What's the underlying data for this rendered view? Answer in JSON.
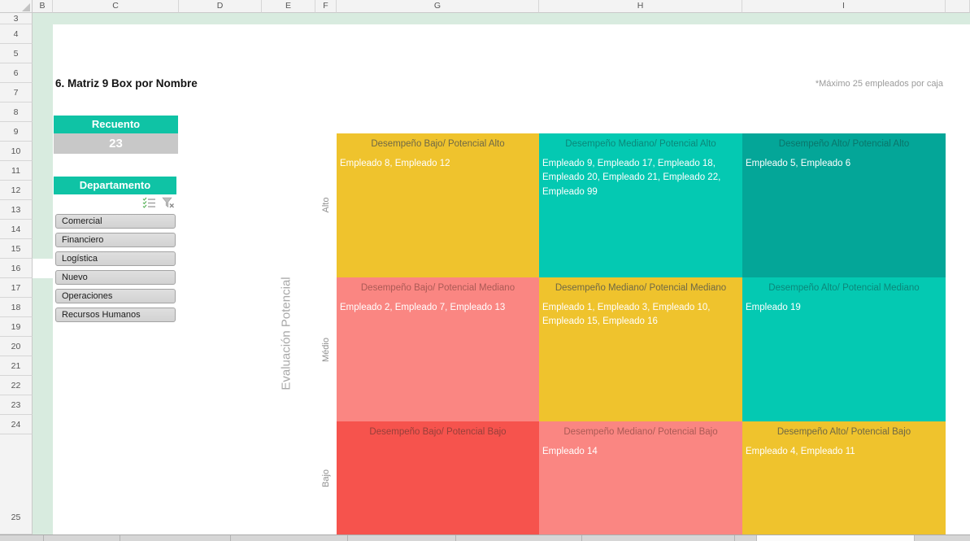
{
  "window": {
    "columns": [
      "B",
      "C",
      "D",
      "E",
      "F",
      "G",
      "H",
      "I",
      ""
    ],
    "rows": [
      "3",
      "4",
      "5",
      "6",
      "7",
      "8",
      "9",
      "10",
      "11",
      "12",
      "13",
      "14",
      "15",
      "16",
      "17",
      "18",
      "19",
      "20",
      "21",
      "22",
      "23",
      "24",
      "25"
    ]
  },
  "header": {
    "title": "6. Matriz 9 Box por Nombre",
    "note": "*Máximo 25 empleados por caja"
  },
  "count_card": {
    "label": "Recuento",
    "value": "23"
  },
  "slicer": {
    "title": "Departamento",
    "icons": [
      "multi-select-icon",
      "clear-filter-icon"
    ],
    "items": [
      "Comercial",
      "Financiero",
      "Logística",
      "Nuevo",
      "Operaciones",
      "Recursos Humanos"
    ]
  },
  "matrix": {
    "y_axis_label": "Evaluación Potencial",
    "row_labels": [
      "Alto",
      "Médio",
      "Bajo"
    ],
    "cells": [
      [
        {
          "title": "Desempeño Bajo/ Potencial Alto",
          "employees": "Empleado 8, Empleado 12",
          "bg": "#efc32d",
          "title_color": "#6f6845"
        },
        {
          "title": "Desempeño Mediano/ Potencial Alto",
          "employees": "Empleado 9, Empleado 17, Empleado 18, Empleado 20, Empleado 21, Empleado 22, Empleado 99",
          "bg": "#04c9b2",
          "title_color": "#0b8779"
        },
        {
          "title": "Desempeño Alto/ Potencial Alto",
          "employees": "Empleado 5, Empleado 6",
          "bg": "#04a698",
          "title_color": "#0a756a"
        }
      ],
      [
        {
          "title": "Desempeño Bajo/ Potencial Mediano",
          "employees": "Empleado 2, Empleado 7, Empleado 13",
          "bg": "#fa8682",
          "title_color": "#ab5a55"
        },
        {
          "title": "Desempeño Mediano/ Potencial Mediano",
          "employees": "Empleado 1, Empleado 3, Empleado 10, Empleado 15, Empleado 16",
          "bg": "#efc32d",
          "title_color": "#6f6845"
        },
        {
          "title": "Desempeño Alto/ Potencial Mediano",
          "employees": "Empleado 19",
          "bg": "#04c9b2",
          "title_color": "#0b8779"
        }
      ],
      [
        {
          "title": "Desempeño Bajo/ Potencial Bajo",
          "employees": "",
          "bg": "#f6534d",
          "title_color": "#963f3a"
        },
        {
          "title": "Desempeño Mediano/ Potencial Bajo",
          "employees": "Empleado 14",
          "bg": "#fa8682",
          "title_color": "#ab5a55"
        },
        {
          "title": "Desempeño Alto/ Potencial Bajo",
          "employees": "Empleado 4, Empleado 11",
          "bg": "#efc32d",
          "title_color": "#6f6845"
        }
      ]
    ]
  },
  "colors": {
    "accent_teal": "#0fc3a5",
    "mint": "#d8ebdf",
    "count_bg": "#c8c8c8",
    "yellow": "#efc32d",
    "teal": "#04c9b2",
    "dark_teal": "#04a698",
    "salmon": "#fa8682",
    "red": "#f6534d"
  }
}
